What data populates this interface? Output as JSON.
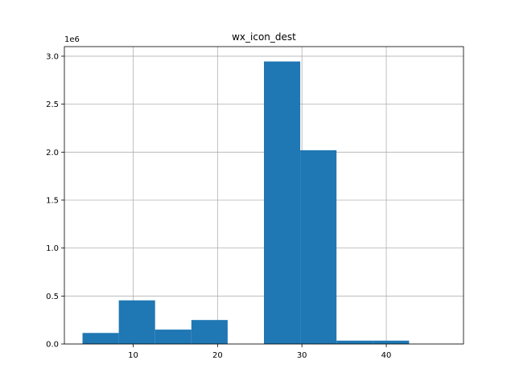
{
  "chart_data": {
    "type": "bar",
    "title": "wx_icon_dest",
    "xlabel": "",
    "ylabel": "",
    "y_offset_label": "1e6",
    "bins": [
      {
        "x0": 4.0,
        "x1": 8.3,
        "value": 115000
      },
      {
        "x0": 8.3,
        "x1": 12.6,
        "value": 455000
      },
      {
        "x0": 12.6,
        "x1": 16.9,
        "value": 150000
      },
      {
        "x0": 16.9,
        "x1": 21.2,
        "value": 250000
      },
      {
        "x0": 21.2,
        "x1": 25.5,
        "value": 0
      },
      {
        "x0": 25.5,
        "x1": 29.8,
        "value": 2945000
      },
      {
        "x0": 29.8,
        "x1": 34.1,
        "value": 2020000
      },
      {
        "x0": 34.1,
        "x1": 38.4,
        "value": 35000
      },
      {
        "x0": 38.4,
        "x1": 42.7,
        "value": 35000
      },
      {
        "x0": 42.7,
        "x1": 47.0,
        "value": 0
      }
    ],
    "xlim": [
      1.85,
      49.15
    ],
    "ylim": [
      0,
      3100000
    ],
    "x_ticks": [
      {
        "value": 10,
        "label": "10"
      },
      {
        "value": 20,
        "label": "20"
      },
      {
        "value": 30,
        "label": "30"
      },
      {
        "value": 40,
        "label": "40"
      }
    ],
    "y_ticks": [
      {
        "value": 0,
        "label": "0.0"
      },
      {
        "value": 500000,
        "label": "0.5"
      },
      {
        "value": 1000000,
        "label": "1.0"
      },
      {
        "value": 1500000,
        "label": "1.5"
      },
      {
        "value": 2000000,
        "label": "2.0"
      },
      {
        "value": 2500000,
        "label": "2.5"
      },
      {
        "value": 3000000,
        "label": "3.0"
      }
    ],
    "grid": true,
    "bar_color": "#1f77b4",
    "grid_color": "#b0b0b0"
  }
}
